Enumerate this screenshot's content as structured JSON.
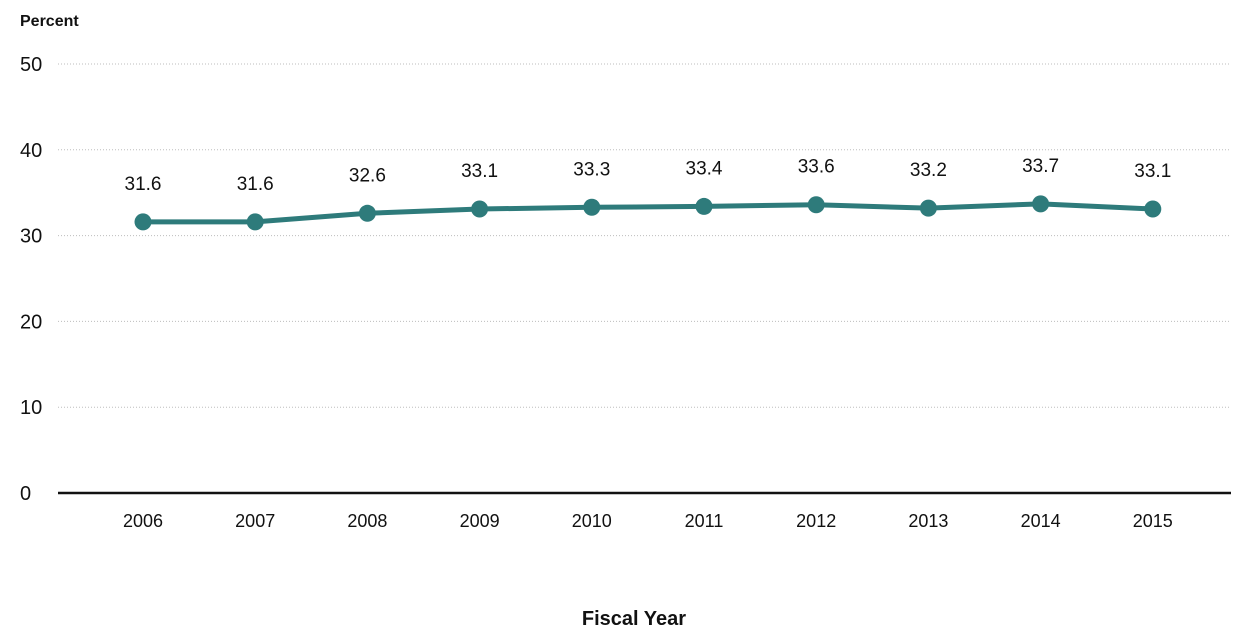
{
  "chart_data": {
    "type": "line",
    "title": "",
    "ylabel": "Percent",
    "xlabel": "Fiscal Year",
    "categories": [
      "2006",
      "2007",
      "2008",
      "2009",
      "2010",
      "2011",
      "2012",
      "2013",
      "2014",
      "2015"
    ],
    "series": [
      {
        "values": [
          31.6,
          31.6,
          32.6,
          33.1,
          33.3,
          33.4,
          33.6,
          33.2,
          33.7,
          33.1
        ],
        "color": "#2e7b7b"
      }
    ],
    "data_labels": [
      "31.6",
      "31.6",
      "32.6",
      "33.1",
      "33.3",
      "33.4",
      "33.6",
      "33.2",
      "33.7",
      "33.1"
    ],
    "ylim": [
      0,
      50
    ],
    "yticks": [
      0,
      10,
      20,
      30,
      40,
      50
    ],
    "grid": true
  }
}
